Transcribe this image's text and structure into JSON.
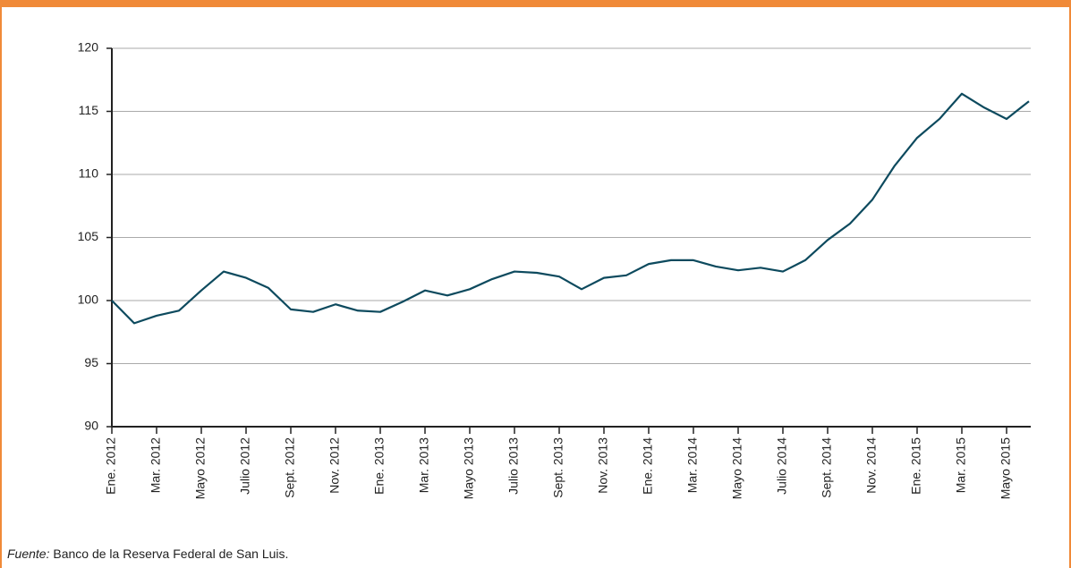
{
  "chart_data": {
    "type": "line",
    "categories": [
      "Ene. 2012",
      null,
      "Mar. 2012",
      null,
      "Mayo 2012",
      null,
      "Julio 2012",
      null,
      "Sept. 2012",
      null,
      "Nov. 2012",
      null,
      "Ene. 2013",
      null,
      "Mar. 2013",
      null,
      "Mayo 2013",
      null,
      "Julio 2013",
      null,
      "Sept. 2013",
      null,
      "Nov. 2013",
      null,
      "Ene. 2014",
      null,
      "Mar. 2014",
      null,
      "Mayo 2014",
      null,
      "Julio 2014",
      null,
      "Sept. 2014",
      null,
      "Nov. 2014",
      null,
      "Ene. 2015",
      null,
      "Mar. 2015",
      null,
      "Mayo 2015",
      null
    ],
    "series": [
      {
        "color": "#0d4a5e",
        "values": [
          100.0,
          98.2,
          98.8,
          99.2,
          100.8,
          102.3,
          101.8,
          101.0,
          99.3,
          99.1,
          99.7,
          99.2,
          99.1,
          99.9,
          100.8,
          100.4,
          100.9,
          101.7,
          102.3,
          102.2,
          101.9,
          100.9,
          101.8,
          102.0,
          102.9,
          103.2,
          103.2,
          102.7,
          102.4,
          102.6,
          102.3,
          103.2,
          104.8,
          106.1,
          108.0,
          110.7,
          112.9,
          114.4,
          116.4,
          115.3,
          114.4,
          115.8
        ]
      }
    ],
    "ylim": [
      90,
      120
    ],
    "yticks": [
      90,
      95,
      100,
      105,
      110,
      115,
      120
    ],
    "grid": true,
    "source_label": "Fuente:",
    "source_text": "Banco de la Reserva Federal de San Luis."
  }
}
